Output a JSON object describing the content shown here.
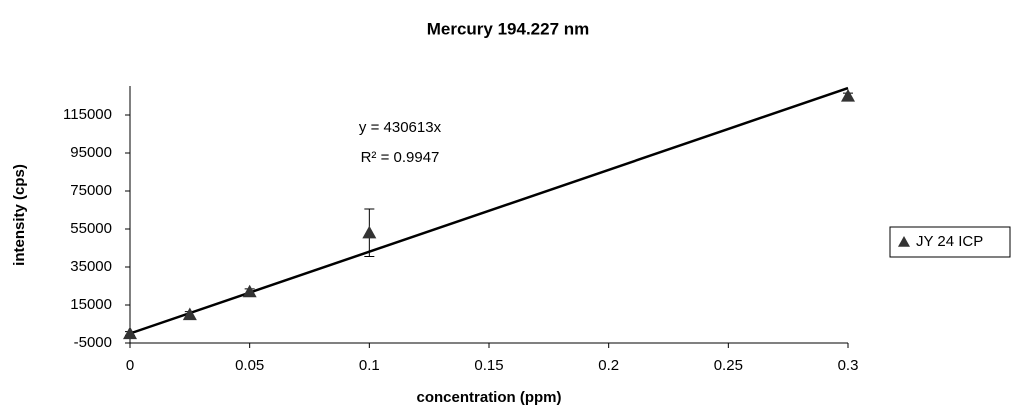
{
  "chart_data": {
    "type": "scatter",
    "title": "Mercury 194.227 nm",
    "x_label": "concentration (ppm)",
    "y_label": "intensity (cps)",
    "series": [
      {
        "name": "JY 24 ICP",
        "color": "#333333",
        "x": [
          0,
          0.025,
          0.05,
          0.1,
          0.3
        ],
        "values": [
          0,
          10000,
          22000,
          53000,
          125000
        ],
        "errors": [
          1000,
          1500,
          1500,
          12500,
          1500
        ]
      }
    ],
    "trendline": {
      "slope": 430613,
      "equation": "y = 430613x",
      "r_squared": "R² = 0.9947"
    },
    "xlim": [
      0,
      0.3
    ],
    "xticks": [
      0,
      0.05,
      0.1,
      0.15,
      0.2,
      0.25,
      0.3
    ],
    "ylim": [
      -5000,
      130000
    ],
    "yticks": [
      -5000,
      15000,
      35000,
      55000,
      75000,
      95000,
      115000
    ],
    "grid": false,
    "legend": "right"
  }
}
